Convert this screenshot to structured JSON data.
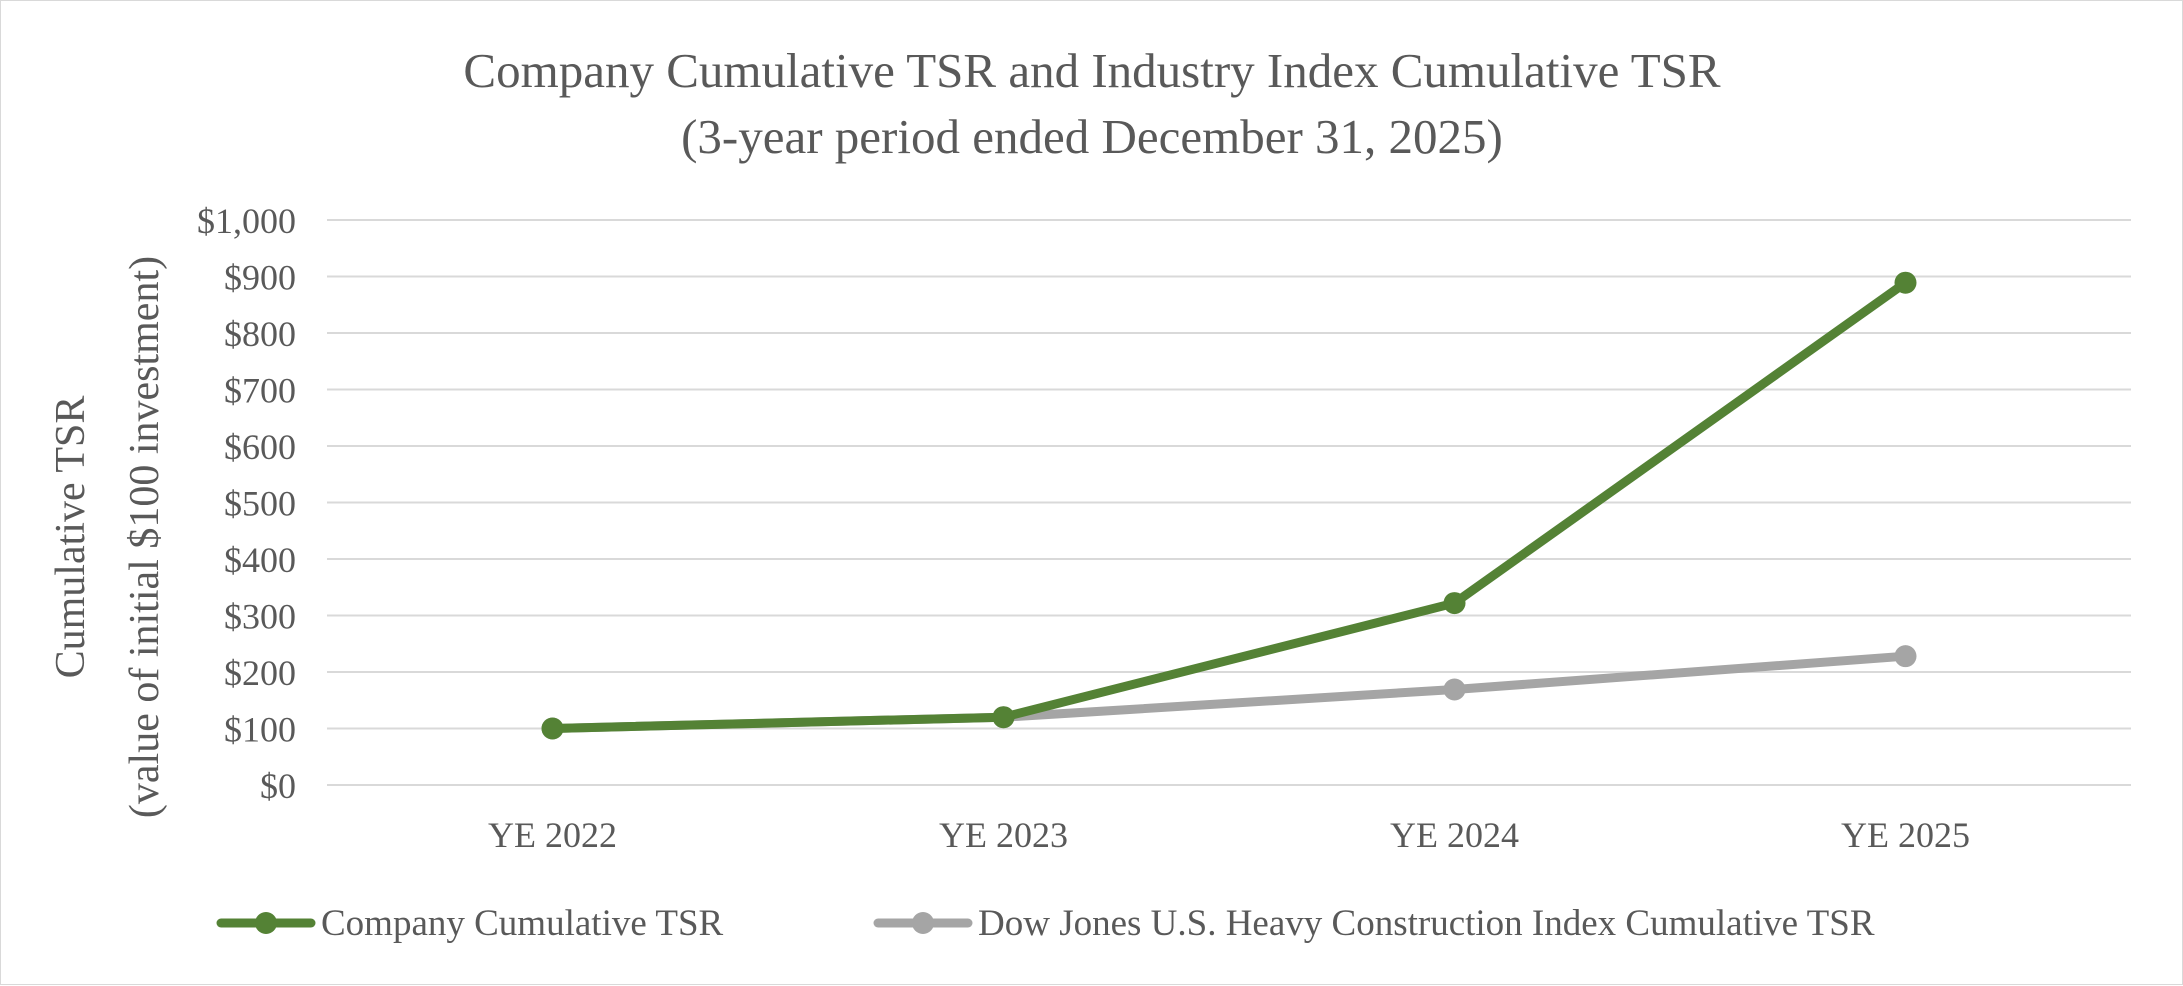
{
  "chart_data": {
    "type": "line",
    "title": "Company Cumulative TSR and Industry Index Cumulative TSR",
    "subtitle": "(3-year period ended December 31, 2025)",
    "xlabel": "",
    "ylabel": "Cumulative TSR",
    "ylabel_sub": "(value of initial $100 investment)",
    "categories": [
      "YE 2022",
      "YE 2023",
      "YE 2024",
      "YE 2025"
    ],
    "ylim": [
      0,
      1000
    ],
    "yticks": [
      0,
      100,
      200,
      300,
      400,
      500,
      600,
      700,
      800,
      900,
      1000
    ],
    "ytick_labels": [
      "$0",
      "$100",
      "$200",
      "$300",
      "$400",
      "$500",
      "$600",
      "$700",
      "$800",
      "$900",
      "$1,000"
    ],
    "grid": true,
    "legend_position": "bottom",
    "series": [
      {
        "name": "Company Cumulative TSR",
        "color": "#548235",
        "values": [
          100,
          120,
          322,
          889
        ]
      },
      {
        "name": "Dow Jones U.S. Heavy Construction Index Cumulative TSR",
        "color": "#a5a5a5",
        "values": [
          100,
          120,
          169,
          228
        ]
      }
    ]
  }
}
